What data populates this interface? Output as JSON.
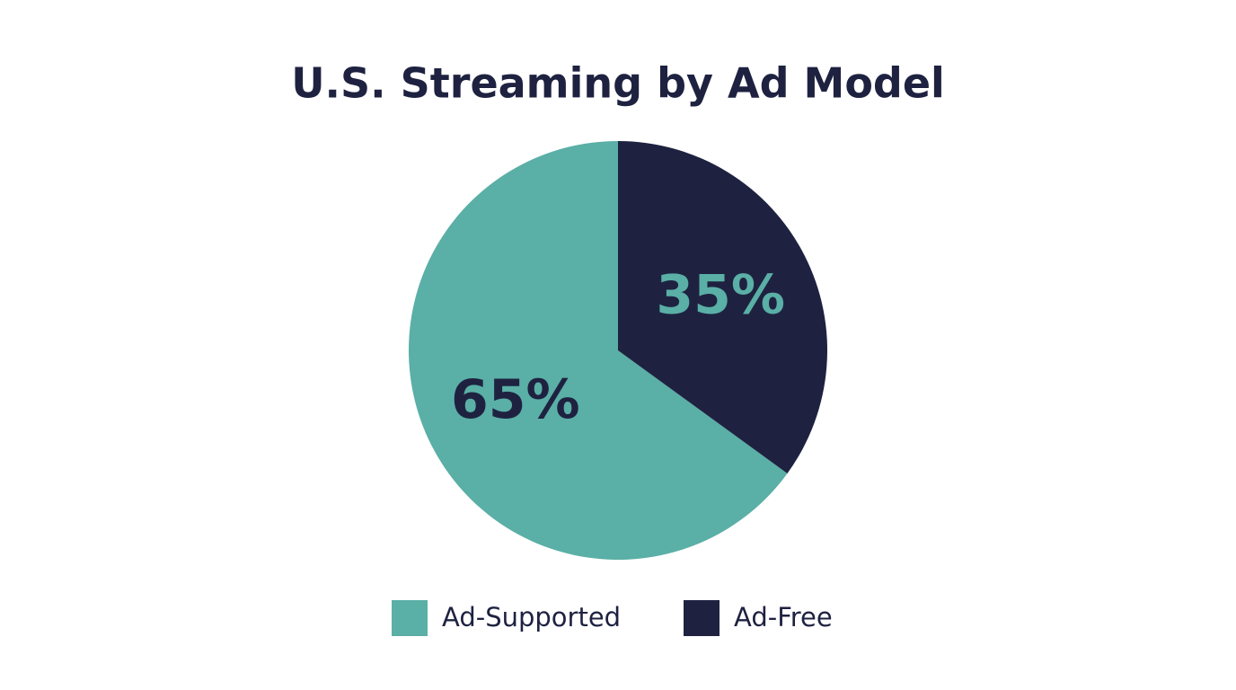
{
  "chart_data": {
    "type": "pie",
    "title": "U.S. Streaming by Ad Model",
    "categories": [
      "Ad-Supported",
      "Ad-Free"
    ],
    "values": [
      65,
      35
    ],
    "value_labels": [
      "65%",
      "35%"
    ],
    "colors": [
      "#5aafa6",
      "#1e2240"
    ]
  }
}
